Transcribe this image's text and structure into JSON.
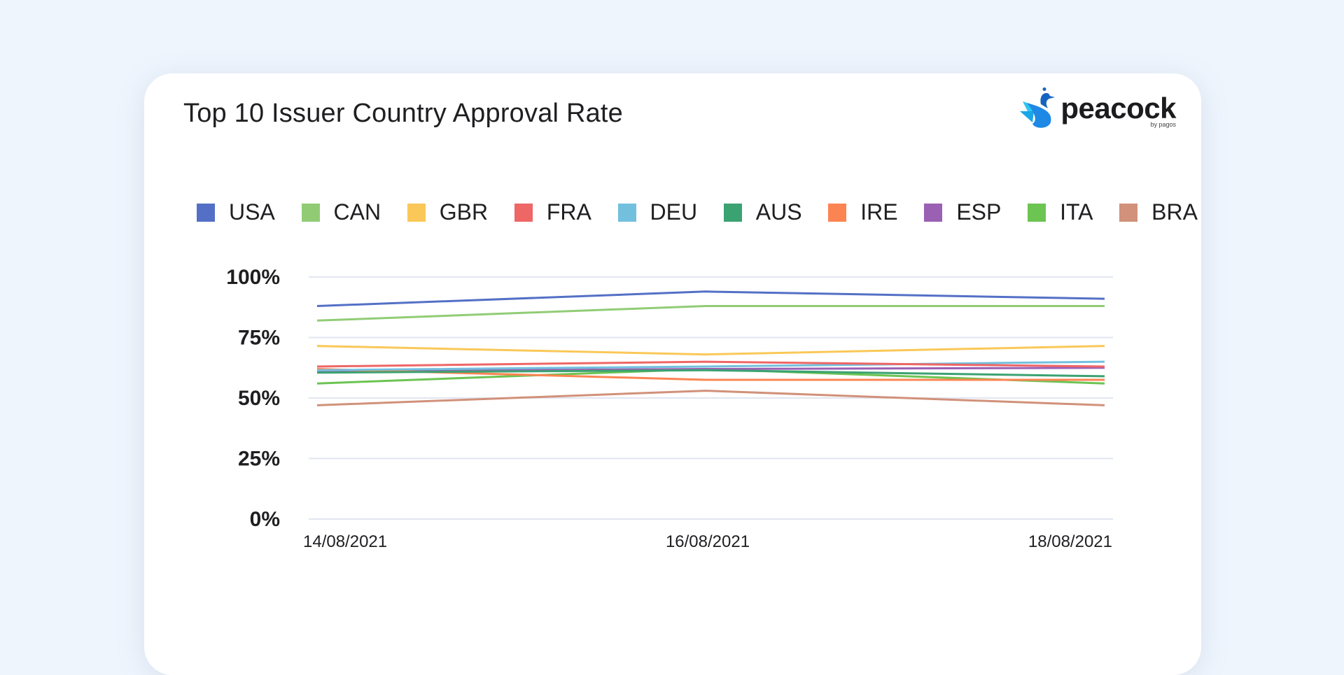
{
  "header": {
    "title": "Top 10 Issuer Country Approval Rate",
    "brand_name": "peacock",
    "brand_sub": "by pagos",
    "brand_logo_icon": "peacock-bird-icon"
  },
  "chart_data": {
    "type": "line",
    "title": "Top 10 Issuer Country Approval Rate",
    "xlabel": "",
    "ylabel": "",
    "categories": [
      "14/08/2021",
      "16/08/2021",
      "18/08/2021"
    ],
    "ylim": [
      0,
      100
    ],
    "yticks": [
      "0%",
      "25%",
      "50%",
      "75%",
      "100%"
    ],
    "ytick_values": [
      0,
      25,
      50,
      75,
      100
    ],
    "grid": true,
    "legend_position": "top",
    "series": [
      {
        "name": "USA",
        "color": "#5470c6",
        "values": [
          88,
          94,
          91
        ]
      },
      {
        "name": "CAN",
        "color": "#91cc75",
        "values": [
          82,
          88,
          88
        ]
      },
      {
        "name": "GBR",
        "color": "#fac858",
        "values": [
          71.5,
          68,
          71.5
        ]
      },
      {
        "name": "FRA",
        "color": "#ee6666",
        "values": [
          63,
          65,
          63
        ]
      },
      {
        "name": "DEU",
        "color": "#73c0de",
        "values": [
          61.5,
          63,
          65
        ]
      },
      {
        "name": "AUS",
        "color": "#3ba272",
        "values": [
          60.5,
          61.5,
          59
        ]
      },
      {
        "name": "IRE",
        "color": "#fc8452",
        "values": [
          62,
          57.5,
          57.5
        ]
      },
      {
        "name": "ESP",
        "color": "#9a60b4",
        "values": [
          61,
          62,
          62.5
        ]
      },
      {
        "name": "ITA",
        "color": "#6cc452",
        "values": [
          56,
          62,
          56
        ]
      },
      {
        "name": "BRA",
        "color": "#d1917a",
        "values": [
          47,
          53,
          47
        ]
      }
    ]
  }
}
